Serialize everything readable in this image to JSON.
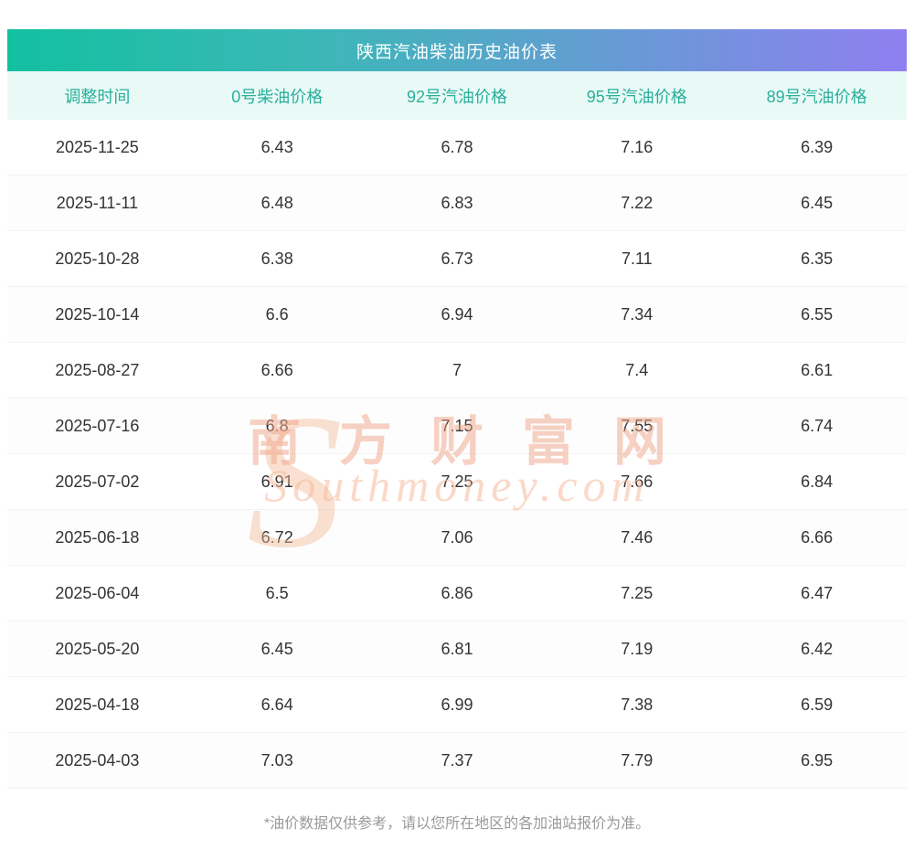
{
  "title": "陕西汽油柴油历史油价表",
  "table": {
    "columns": [
      "调整时间",
      "0号柴油价格",
      "92号汽油价格",
      "95号汽油价格",
      "89号汽油价格"
    ],
    "rows": [
      [
        "2025-11-25",
        "6.43",
        "6.78",
        "7.16",
        "6.39"
      ],
      [
        "2025-11-11",
        "6.48",
        "6.83",
        "7.22",
        "6.45"
      ],
      [
        "2025-10-28",
        "6.38",
        "6.73",
        "7.11",
        "6.35"
      ],
      [
        "2025-10-14",
        "6.6",
        "6.94",
        "7.34",
        "6.55"
      ],
      [
        "2025-08-27",
        "6.66",
        "7",
        "7.4",
        "6.61"
      ],
      [
        "2025-07-16",
        "6.8",
        "7.15",
        "7.55",
        "6.74"
      ],
      [
        "2025-07-02",
        "6.91",
        "7.25",
        "7.66",
        "6.84"
      ],
      [
        "2025-06-18",
        "6.72",
        "7.06",
        "7.46",
        "6.66"
      ],
      [
        "2025-06-04",
        "6.5",
        "6.86",
        "7.25",
        "6.47"
      ],
      [
        "2025-05-20",
        "6.45",
        "6.81",
        "7.19",
        "6.42"
      ],
      [
        "2025-04-18",
        "6.64",
        "6.99",
        "7.38",
        "6.59"
      ],
      [
        "2025-04-03",
        "7.03",
        "7.37",
        "7.79",
        "6.95"
      ]
    ]
  },
  "footer_note": "*油价数据仅供参考，请以您所在地区的各加油站报价为准。",
  "watermark": {
    "initial": "S",
    "cn": "南方财富网",
    "en": "Southmoney.com"
  },
  "colors": {
    "gradient_start": "#12c0a0",
    "gradient_end": "#8f7ff0",
    "header_bg": "#e9faf6",
    "header_text": "#2aaf9c",
    "body_text": "#333333",
    "footer_text": "#999999",
    "watermark": "#f0a387"
  }
}
